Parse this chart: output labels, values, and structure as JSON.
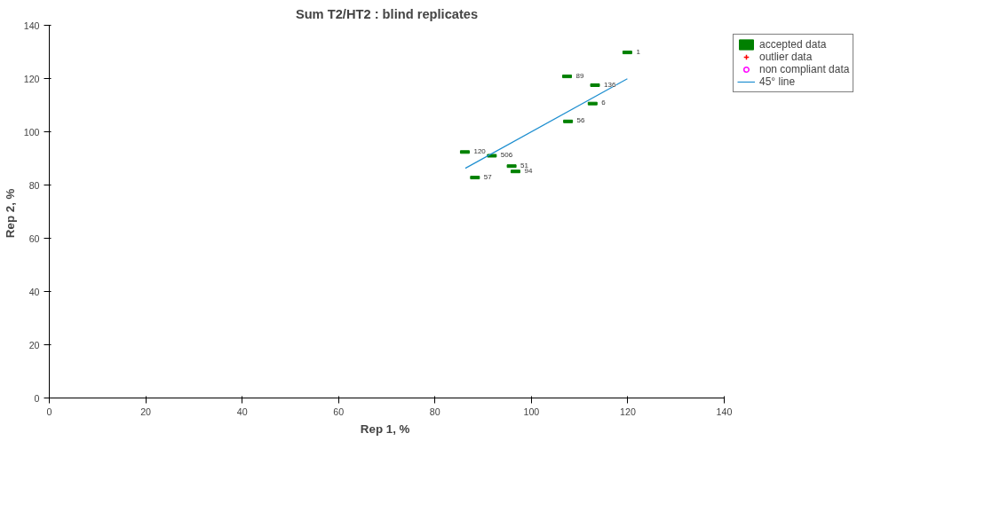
{
  "chart_data": {
    "type": "scatter",
    "title": "Sum T2/HT2 : blind replicates",
    "xlabel": "Rep 1,  %",
    "ylabel": "Rep 2,  %",
    "xlim": [
      0,
      140
    ],
    "ylim": [
      0,
      140
    ],
    "xticks": [
      0,
      20,
      40,
      60,
      80,
      100,
      120,
      140
    ],
    "yticks": [
      0,
      20,
      40,
      60,
      80,
      100,
      120,
      140
    ],
    "grid": false,
    "legend": "top right",
    "series": [
      {
        "name": "accepted data",
        "color": "#008000",
        "x": [
          119.9,
          107.4,
          113.2,
          112.7,
          107.6,
          86.2,
          91.8,
          95.9,
          96.7,
          88.3
        ],
        "values": [
          129.8,
          120.8,
          117.5,
          110.6,
          103.9,
          92.4,
          91.0,
          87.1,
          85.1,
          82.8
        ]
      },
      {
        "name": "outlier data",
        "color": "#ff0000",
        "marker": "cross"
      },
      {
        "name": "non compliant data",
        "color": "#ff00ff",
        "marker": "circle"
      },
      {
        "name": "45° line",
        "type": "line",
        "color": "#1f8fd0",
        "marker": "none",
        "x": [
          86.3,
          119.9
        ],
        "values": [
          86.3,
          119.9
        ]
      }
    ],
    "annotations": [
      {
        "text": "1",
        "x": 119.9,
        "y": 129.8
      },
      {
        "text": "89",
        "x": 107.4,
        "y": 120.8
      },
      {
        "text": "136",
        "x": 113.2,
        "y": 117.5
      },
      {
        "text": "6",
        "x": 112.7,
        "y": 110.6
      },
      {
        "text": "56",
        "x": 107.6,
        "y": 103.9
      },
      {
        "text": "120",
        "x": 86.2,
        "y": 92.4
      },
      {
        "text": "506",
        "x": 91.8,
        "y": 91.0
      },
      {
        "text": "51",
        "x": 95.9,
        "y": 87.1
      },
      {
        "text": "94",
        "x": 96.7,
        "y": 85.1
      },
      {
        "text": "57",
        "x": 88.3,
        "y": 82.8
      }
    ]
  }
}
